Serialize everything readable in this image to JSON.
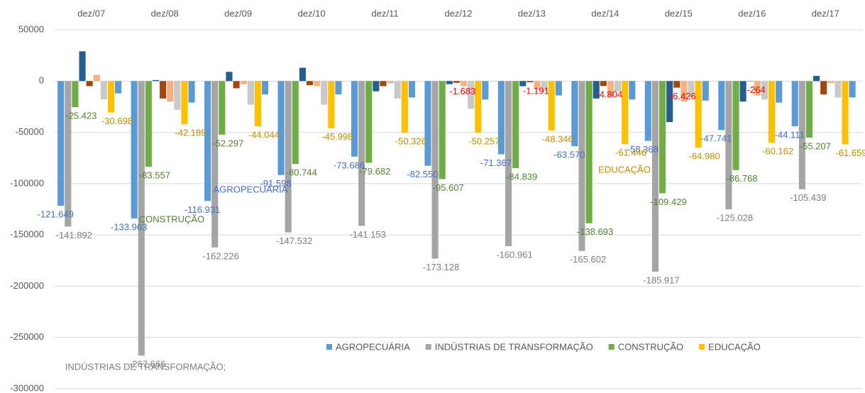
{
  "chart_data": {
    "type": "bar",
    "categories": [
      "dez/07",
      "dez/08",
      "dez/09",
      "dez/10",
      "dez/11",
      "dez/12",
      "dez/13",
      "dez/14",
      "dez/15",
      "dez/16",
      "dez/17"
    ],
    "ylim": [
      -300000,
      50000
    ],
    "yticks": [
      -300000,
      -250000,
      -200000,
      -150000,
      -100000,
      -50000,
      0,
      50000
    ],
    "grid": true,
    "legend": "bottom",
    "series": [
      {
        "name": "AGROPECUÁRIA",
        "color": "#5b9bd5",
        "label_color": "#4472c4",
        "values": [
          -121649,
          -133963,
          -116931,
          -91598,
          -73686,
          -82550,
          -71367,
          -63570,
          -58368,
          -47741,
          -44111
        ],
        "value_labels": [
          "-121.649",
          "-133.963",
          "-116.931",
          "-91.598",
          "-73.686",
          "-82.550",
          "-71.367",
          "-63.570",
          "-58.368",
          "-47.741",
          "-44.111"
        ]
      },
      {
        "name": "INDÚSTRIAS DE TRANSFORMAÇÃO",
        "color": "#a5a5a5",
        "label_color": "#7f7f7f",
        "values": [
          -141892,
          -267666,
          -162226,
          -147532,
          -141153,
          -173128,
          -160961,
          -165602,
          -185917,
          -125028,
          -105439
        ],
        "value_labels": [
          "-141.892",
          "-267.666",
          "-162.226",
          "-147.532",
          "-141.153",
          "-173.128",
          "-160.961",
          "-165.602",
          "-185.917",
          "-125.028",
          "-105.439"
        ]
      },
      {
        "name": "CONSTRUÇÃO",
        "color": "#70ad47",
        "label_color": "#548235",
        "values": [
          -25423,
          -83557,
          -52297,
          -80744,
          -79682,
          -95607,
          -84839,
          -138693,
          -109429,
          -86768,
          -55207
        ],
        "value_labels": [
          "-25.423",
          "-83.557",
          "-52.297",
          "-80.744",
          "-79.682",
          "-95.607",
          "-84.839",
          "-138.693",
          "-109.429",
          "-86.768",
          "-55.207"
        ]
      },
      {
        "color": "#255e91",
        "values": [
          29000,
          1000,
          9000,
          13000,
          -10000,
          -3000,
          -5000,
          -17000,
          -40000,
          -20000,
          5000
        ]
      },
      {
        "color": "#9e480e",
        "label_color": "#ff0000",
        "values": [
          -5000,
          -17000,
          -7000,
          -4000,
          -5000,
          -1683,
          -1191,
          -4804,
          -6426,
          -264,
          -13000
        ],
        "value_labels": [
          null,
          null,
          null,
          null,
          null,
          "-1.683",
          "-1.191",
          "-4.804",
          "-6.426",
          "-264",
          null
        ]
      },
      {
        "color": "#f4b183",
        "values": [
          6000,
          -20000,
          -3000,
          -5000,
          -2000,
          -5000,
          -8000,
          -15000,
          -20000,
          -14000,
          -2000
        ]
      },
      {
        "color": "#c9c9c9",
        "values": [
          -18000,
          -28000,
          -23000,
          -23000,
          -17000,
          -27000,
          -10000,
          -10000,
          -16000,
          -18000,
          -16000
        ]
      },
      {
        "name": "EDUCAÇÃO",
        "color": "#ffc000",
        "label_color": "#bf9000",
        "values": [
          -30698,
          -42189,
          -44044,
          -45998,
          -50326,
          -50257,
          -48346,
          -61446,
          -64980,
          -60162,
          -61659
        ],
        "value_labels": [
          "-30.698",
          "-42.189",
          "-44.044",
          "-45.998",
          "-50.326",
          "-50.257",
          "-48.346",
          "-61.446",
          "-64.980",
          "-60.162",
          "-61.659"
        ]
      },
      {
        "color": "#5b9bd5",
        "values": [
          -12000,
          -21000,
          -13000,
          -13000,
          -16000,
          -18000,
          -14000,
          -18000,
          -19000,
          -21000,
          -16000
        ]
      }
    ],
    "annotations": [
      {
        "text": "AGROPECUÁRIA",
        "color": "#4472c4"
      },
      {
        "text": "CONSTRUÇÃO",
        "color": "#548235"
      },
      {
        "text": "EDUCAÇÃO",
        "color": "#bf9000"
      },
      {
        "text": "INDÚSTRIAS DE TRANSFORMAÇÃO;",
        "color": "#7f7f7f"
      }
    ]
  }
}
